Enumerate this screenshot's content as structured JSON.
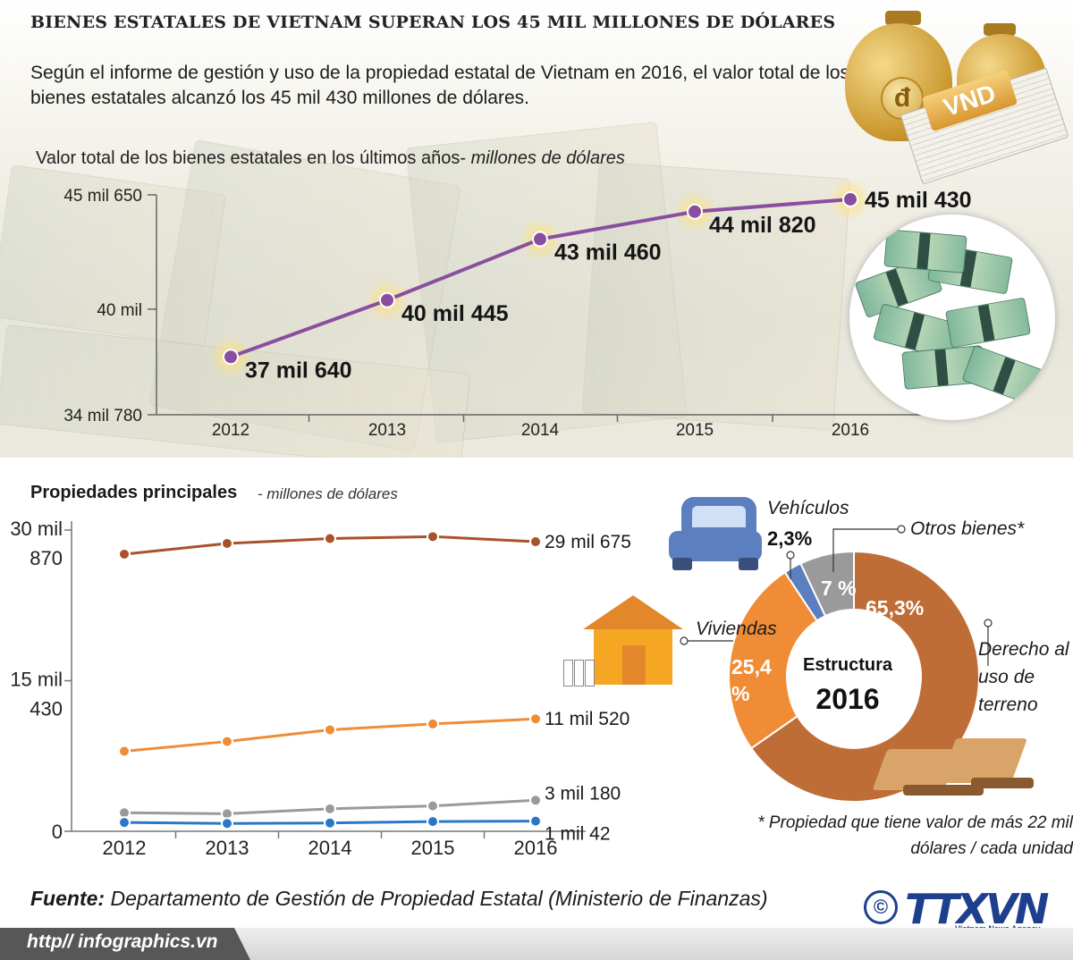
{
  "title": "BIENES ESTATALES DE VIETNAM SUPERAN LOS 45 MIL MILLONES DE DÓLARES",
  "intro": "Según el informe de gestión y uso de la propiedad estatal de Vietnam en 2016, el valor total de los bienes estatales alcanzó los 45 mil 430 millones de dólares.",
  "chart1_title_main": "Valor total de los bienes estatales en los últimos años-",
  "chart1_title_unit": " millones de dólares",
  "section2_title": "Propiedades principales",
  "section2_unit": " - millones de dólares",
  "donut": {
    "center_label": "Estructura",
    "center_year": "2016",
    "seg_land_label": "65,3%",
    "seg_housing_label_1": "25,4",
    "seg_housing_label_2": "%",
    "seg_other_label": "7 %",
    "vehicles_label": "Vehículos",
    "vehicles_value": "2,3%",
    "other_label": "Otros bienes*",
    "housing_label": "Viviendas",
    "land_label_1": "Derecho al",
    "land_label_2": "uso de",
    "land_label_3": "terreno",
    "colors": {
      "land": "#bf6d37",
      "housing": "#f08c36",
      "vehicles": "#5c7fc0",
      "other": "#9a9a9a"
    }
  },
  "footnote_1": "* Propiedad que tiene valor de más 22 mil",
  "footnote_2": "dólares / cada unidad",
  "source_label": "Fuente:",
  "source_text": " Departamento de Gestión de Propiedad Estatal (Ministerio de Finanzas)",
  "footer_url": "http// infographics.vn",
  "copyright": "©",
  "logo": "TTXVN",
  "logo_sub": "Vietnam News Agency",
  "icons": {
    "coin_symbol": "đ",
    "vnd_band": "VND"
  },
  "chart_data": [
    {
      "type": "line",
      "x": [
        "2012",
        "2013",
        "2014",
        "2015",
        "2016"
      ],
      "values": [
        37640,
        40445,
        43460,
        44820,
        45430
      ],
      "data_labels": [
        "37 mil 640",
        "40 mil 445",
        "43 mil 460",
        "44 mil 820",
        "45 mil 430"
      ],
      "yticks": [
        34780,
        40000,
        45650
      ],
      "ytick_labels": [
        "34 mil 780",
        "40 mil",
        "45 mil 650"
      ],
      "ylim": [
        34780,
        45650
      ],
      "color": "#8a4ea0"
    },
    {
      "type": "line",
      "x": [
        "2012",
        "2013",
        "2014",
        "2015",
        "2016"
      ],
      "ylim": [
        0,
        30870
      ],
      "yticks": [
        0,
        15430,
        30870
      ],
      "ytick_labels": [
        [
          "0"
        ],
        [
          "15 mil",
          "430"
        ],
        [
          "30 mil",
          "870"
        ]
      ],
      "series": [
        {
          "values": [
            28400,
            29500,
            30000,
            30200,
            29675
          ],
          "end_label": "29 mil 675",
          "color": "#a8522a"
        },
        {
          "values": [
            8200,
            9200,
            10400,
            11000,
            11520
          ],
          "end_label": "11 mil 520",
          "color": "#f08c36"
        },
        {
          "values": [
            1900,
            1800,
            2300,
            2600,
            3180
          ],
          "end_label": "3 mil 180",
          "color": "#9a9a9a"
        },
        {
          "values": [
            900,
            800,
            850,
            1000,
            1042
          ],
          "end_label": "1 mil 42",
          "color": "#2a78c4"
        }
      ]
    }
  ]
}
